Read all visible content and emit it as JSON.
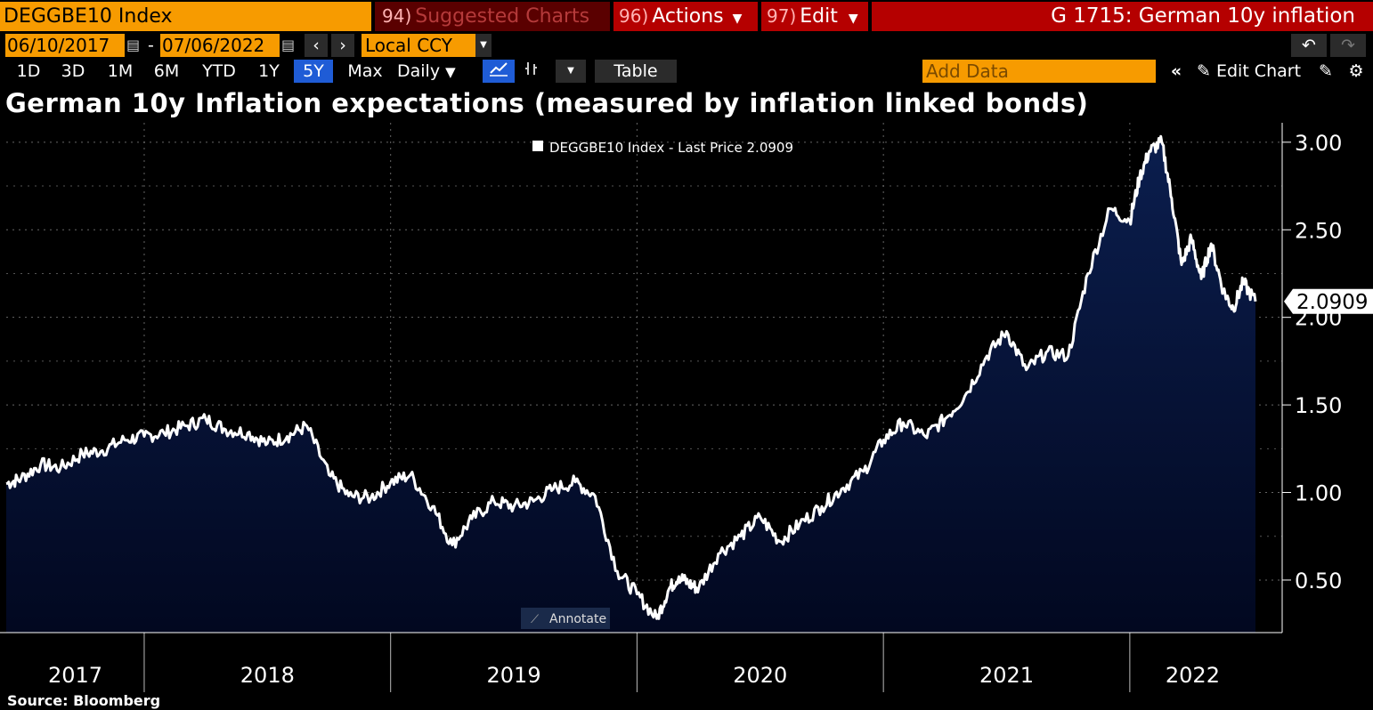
{
  "header": {
    "ticker": "DEGGBE10 Index",
    "suggested_num": "94)",
    "suggested_label": "Suggested Charts",
    "actions_num": "96)",
    "actions_label": "Actions",
    "edit_num": "97)",
    "edit_label": "Edit",
    "window_title": "G 1715: German 10y inflation",
    "date_start": "06/10/2017",
    "date_end": "07/06/2022",
    "currency": "Local CCY",
    "periods": [
      "1D",
      "3D",
      "1M",
      "6M",
      "YTD",
      "1Y",
      "5Y",
      "Max"
    ],
    "active_period": "5Y",
    "frequency": "Daily",
    "table_label": "Table",
    "add_data_placeholder": "Add Data",
    "edit_chart_label": "Edit Chart",
    "annotate_label": "Annotate",
    "icons": [
      "calendar-icon",
      "arrow-left-icon",
      "arrow-right-icon",
      "dropdown-icon",
      "undo-icon",
      "redo-icon",
      "line-chart-icon",
      "bar-chart-icon",
      "collapse-icon",
      "pencil-icon",
      "settings-icon",
      "gear-icon"
    ]
  },
  "colors": {
    "orange": "#f79b00",
    "red": "#b50000",
    "active": "#1f5cd6",
    "area_top": "#0b1e4e",
    "line": "#ffffff"
  },
  "source": "Source: Bloomberg",
  "chart_data": {
    "type": "area",
    "title": "German 10y Inflation expectations (measured by inflation linked bonds)",
    "legend": "DEGGBE10 Index - Last Price 2.0909",
    "last_value_label": "2.0909",
    "xlabel": "",
    "ylabel": "",
    "ylim": [
      0.2,
      3.05
    ],
    "yticks": [
      0.5,
      1.0,
      1.5,
      2.0,
      2.5,
      3.0
    ],
    "ytick_labels": [
      "0.50",
      "1.00",
      "1.50",
      "2.00",
      "2.50",
      "3.00"
    ],
    "year_labels": [
      "2017",
      "2018",
      "2019",
      "2020",
      "2021",
      "2022"
    ],
    "x_range": [
      2017.44,
      2022.51
    ],
    "x": [
      2017.44,
      2017.5,
      2017.58,
      2017.66,
      2017.75,
      2017.83,
      2017.92,
      2018.0,
      2018.08,
      2018.17,
      2018.25,
      2018.33,
      2018.42,
      2018.5,
      2018.58,
      2018.66,
      2018.75,
      2018.83,
      2018.92,
      2019.0,
      2019.08,
      2019.17,
      2019.25,
      2019.33,
      2019.42,
      2019.5,
      2019.58,
      2019.66,
      2019.75,
      2019.83,
      2019.92,
      2020.0,
      2020.08,
      2020.13,
      2020.17,
      2020.21,
      2020.25,
      2020.33,
      2020.42,
      2020.5,
      2020.58,
      2020.66,
      2020.75,
      2020.83,
      2020.92,
      2021.0,
      2021.08,
      2021.17,
      2021.25,
      2021.33,
      2021.42,
      2021.5,
      2021.58,
      2021.66,
      2021.75,
      2021.83,
      2021.92,
      2022.0,
      2022.04,
      2022.08,
      2022.13,
      2022.17,
      2022.21,
      2022.25,
      2022.29,
      2022.33,
      2022.38,
      2022.42,
      2022.46,
      2022.51
    ],
    "values": [
      1.05,
      1.08,
      1.16,
      1.14,
      1.22,
      1.24,
      1.3,
      1.32,
      1.34,
      1.38,
      1.42,
      1.36,
      1.34,
      1.28,
      1.32,
      1.38,
      1.1,
      0.98,
      0.97,
      1.06,
      1.1,
      0.92,
      0.7,
      0.85,
      0.95,
      0.92,
      0.95,
      1.02,
      1.06,
      0.98,
      0.55,
      0.42,
      0.28,
      0.45,
      0.52,
      0.48,
      0.45,
      0.65,
      0.75,
      0.86,
      0.72,
      0.82,
      0.92,
      1.02,
      1.12,
      1.3,
      1.4,
      1.32,
      1.42,
      1.55,
      1.78,
      1.92,
      1.7,
      1.8,
      1.78,
      2.25,
      2.62,
      2.55,
      2.8,
      2.95,
      3.0,
      2.68,
      2.3,
      2.45,
      2.22,
      2.42,
      2.15,
      2.05,
      2.2,
      2.0909
    ]
  }
}
